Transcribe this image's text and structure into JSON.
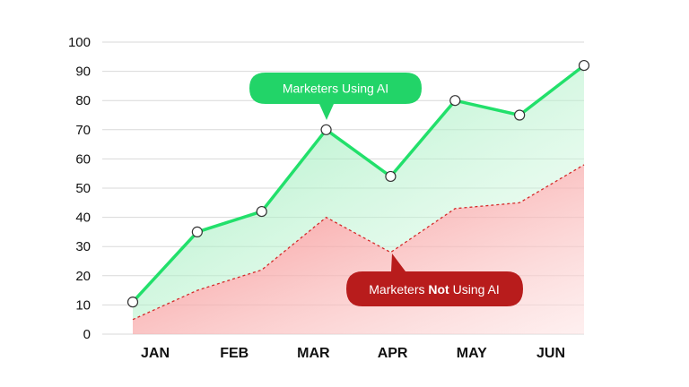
{
  "chart_data": {
    "type": "area",
    "ylim": [
      0,
      100
    ],
    "yticks": [
      "0",
      "10",
      "20",
      "30",
      "40",
      "50",
      "60",
      "70",
      "80",
      "90",
      "100"
    ],
    "categories": [
      "JAN",
      "FEB",
      "MAR",
      "APR",
      "MAY",
      "JUN"
    ],
    "grid": true,
    "series": [
      {
        "name": "Marketers Using AI",
        "color": "#22e06b",
        "x": [
          0,
          1,
          2,
          3,
          4,
          5,
          6,
          7
        ],
        "values": [
          11,
          35,
          42,
          70,
          54,
          80,
          75,
          92
        ]
      },
      {
        "name": "Marketers Not Using AI",
        "color": "#e02b2b",
        "x": [
          0,
          1,
          2,
          3,
          4,
          5,
          6,
          7
        ],
        "values": [
          5,
          15,
          22,
          40,
          28,
          43,
          45,
          58
        ]
      }
    ],
    "callouts": {
      "using": {
        "text": "Marketers Using AI",
        "color": "#22d468"
      },
      "not_using": {
        "pre": "Marketers ",
        "bold": "Not",
        "post": " Using AI",
        "color": "#b81c1c"
      }
    }
  }
}
